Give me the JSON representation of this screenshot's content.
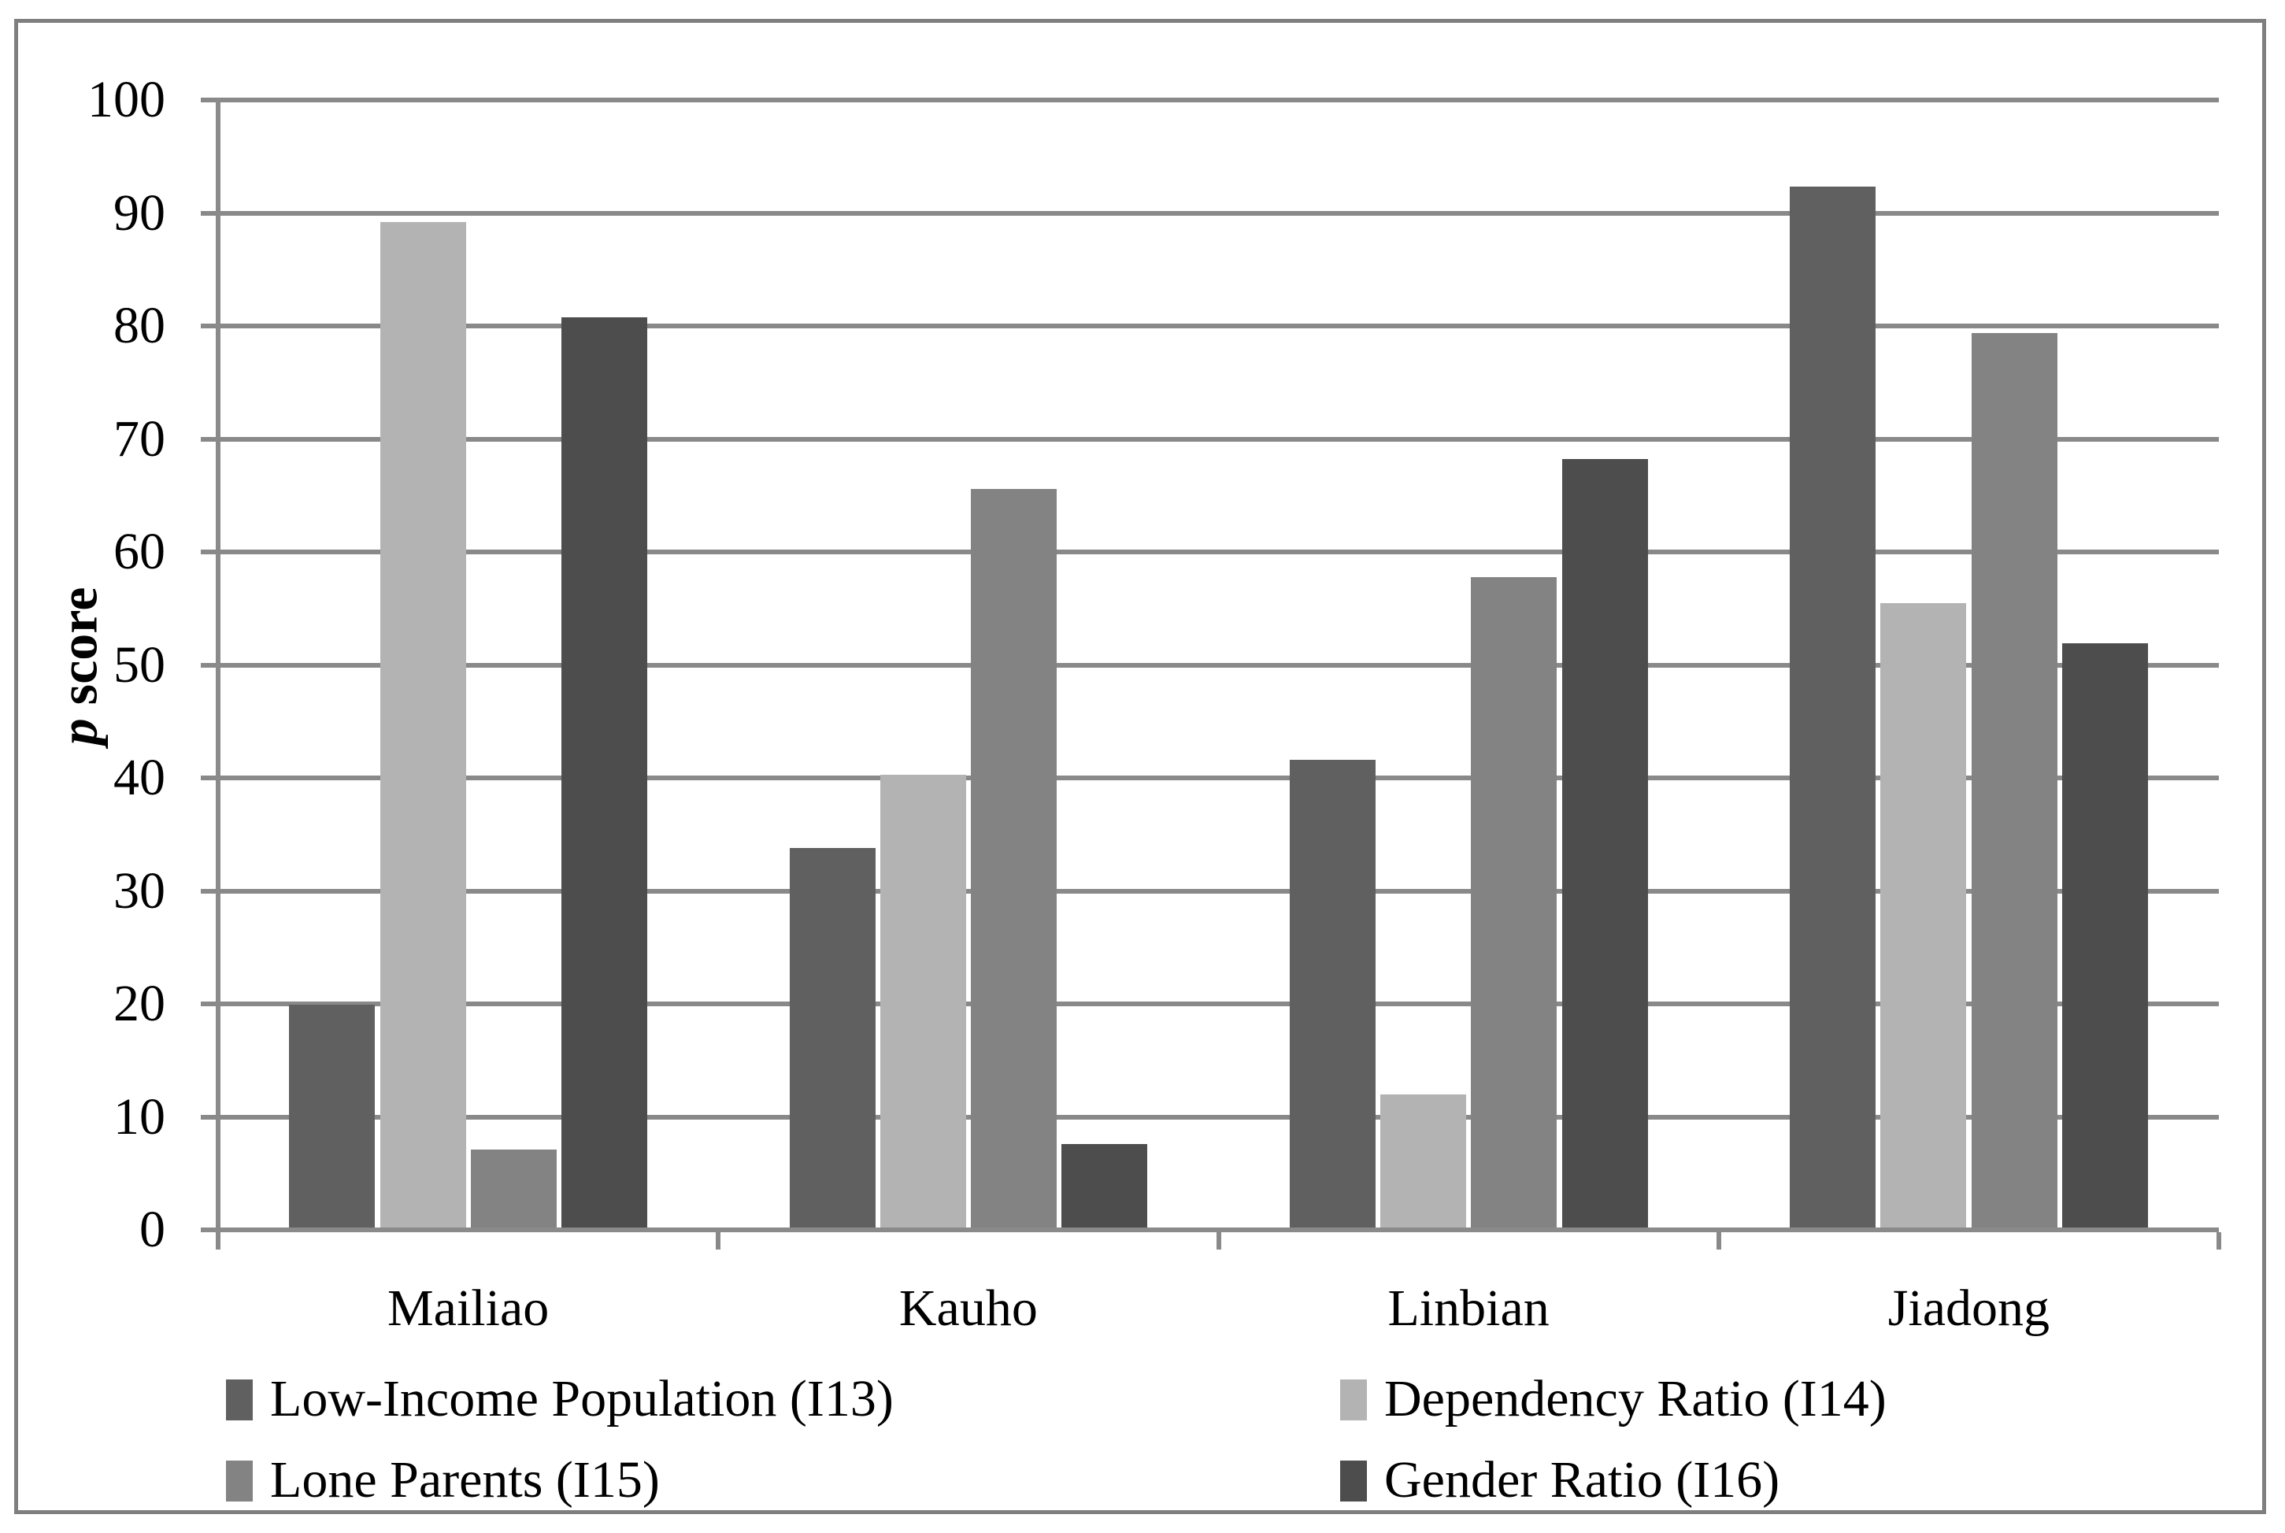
{
  "figure": {
    "ylabel_italic": "p",
    "ylabel_regular": " score"
  },
  "chart_data": {
    "type": "bar",
    "title": "",
    "xlabel": "",
    "ylabel": "p score",
    "ylim": [
      0,
      100
    ],
    "yticks": [
      0,
      10,
      20,
      30,
      40,
      50,
      60,
      70,
      80,
      90,
      100
    ],
    "grid": true,
    "legend_position": "bottom-two-columns",
    "categories": [
      "Mailiao",
      "Kauho",
      "Linbian",
      "Jiadong"
    ],
    "series": [
      {
        "name": "Low-Income Population (I13)",
        "color": "#606060",
        "values": [
          19.9,
          33.8,
          41.6,
          92.3
        ]
      },
      {
        "name": "Dependency Ratio (I14)",
        "color": "#b3b3b3",
        "values": [
          89.2,
          40.3,
          12.0,
          55.5
        ]
      },
      {
        "name": "Lone Parents (I15)",
        "color": "#838383",
        "values": [
          7.1,
          65.6,
          57.8,
          79.4
        ]
      },
      {
        "name": "Gender Ratio (I16)",
        "color": "#4d4d4d",
        "values": [
          80.8,
          7.6,
          68.2,
          51.9
        ]
      }
    ]
  },
  "colors": {
    "background": "#ffffff",
    "frame_border": "#7f7f7f",
    "gridline": "#898989",
    "axis": "#8a8a8a",
    "text": "#000000"
  }
}
